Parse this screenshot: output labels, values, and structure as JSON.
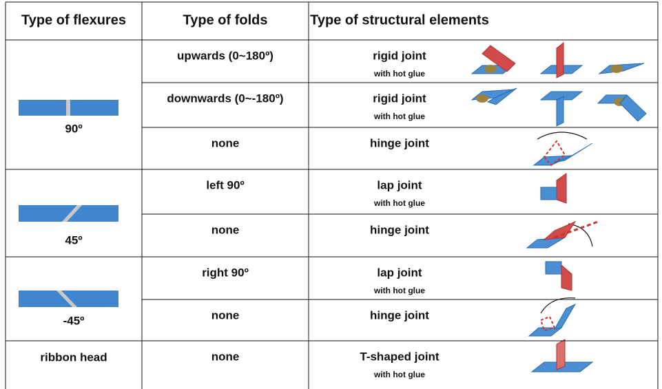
{
  "table": {
    "header": [
      "Type of flexures",
      "Type of folds",
      "Type of structural elements"
    ],
    "groups": [
      {
        "flexure": "90º",
        "rows": [
          {
            "fold": "upwards (0~180º)",
            "joint": "rigid joint",
            "note": "with hot glue"
          },
          {
            "fold": "downwards (0~-180º)",
            "joint": "rigid joint",
            "note": "with hot glue"
          },
          {
            "fold": "none",
            "joint": "hinge joint"
          }
        ]
      },
      {
        "flexure": "45º",
        "rows": [
          {
            "fold": "left 90º",
            "joint": "lap joint",
            "note": "with hot glue"
          },
          {
            "fold": "none",
            "joint": "hinge joint"
          }
        ]
      },
      {
        "flexure": "-45º",
        "rows": [
          {
            "fold": "right 90º",
            "joint": "lap joint",
            "note": "with hot glue"
          },
          {
            "fold": "none",
            "joint": "hinge joint"
          }
        ]
      },
      {
        "flexure": "ribbon head",
        "rows": [
          {
            "fold": "none",
            "joint": "T-shaped joint",
            "note": "with hot glue"
          }
        ]
      }
    ]
  }
}
